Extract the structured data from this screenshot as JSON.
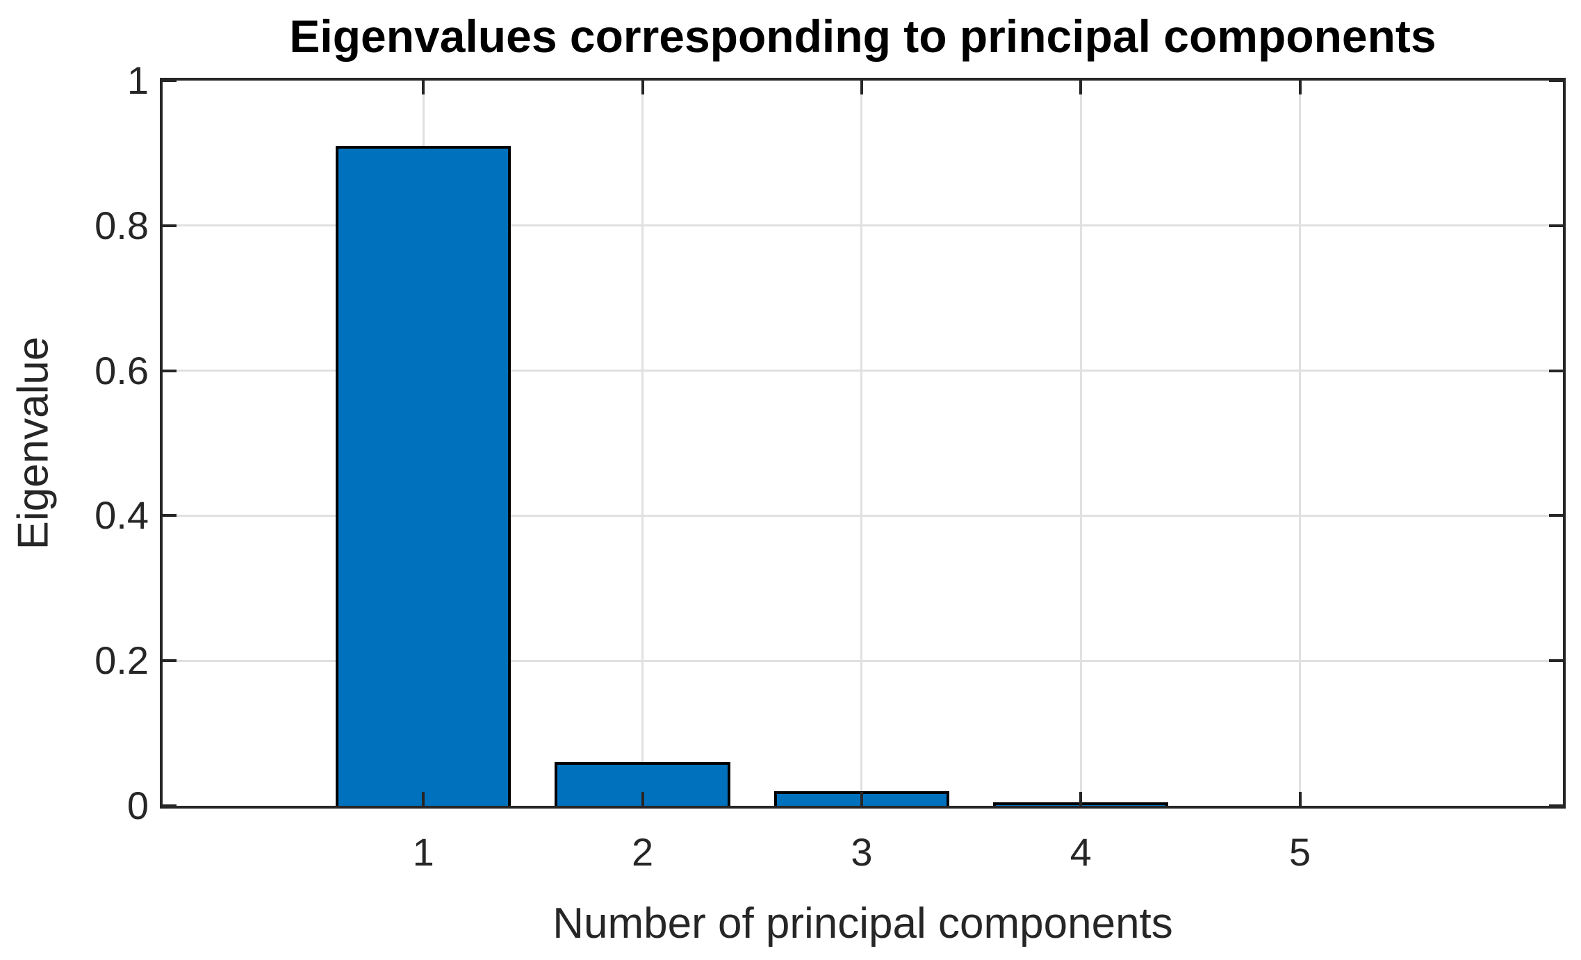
{
  "figure": {
    "background": "#ffffff"
  },
  "chart_data": {
    "type": "bar",
    "title": "Eigenvalues corresponding to principal components",
    "xlabel": "Number of principal components",
    "ylabel": "Eigenvalue",
    "categories": [
      "1",
      "2",
      "3",
      "4",
      "5"
    ],
    "values": [
      0.91,
      0.06,
      0.02,
      0.005,
      0.001
    ],
    "x_positions": [
      1,
      2,
      3,
      4,
      5
    ],
    "xlim": [
      -0.19,
      6.2
    ],
    "ylim": [
      0,
      1
    ],
    "yticks": [
      0,
      0.2,
      0.4,
      0.6,
      0.8,
      1
    ],
    "ytick_labels": [
      "0",
      "0.2",
      "0.4",
      "0.6",
      "0.8",
      "1"
    ],
    "grid": true,
    "legend": null,
    "bar_width_fraction": 0.8,
    "colors": {
      "bar_fill": "#0072BD",
      "bar_edge": "#000000",
      "axis": "#262626",
      "grid": "#E0E0E0",
      "tick_label": "#262626",
      "title": "#000000",
      "axis_label": "#262626"
    }
  }
}
